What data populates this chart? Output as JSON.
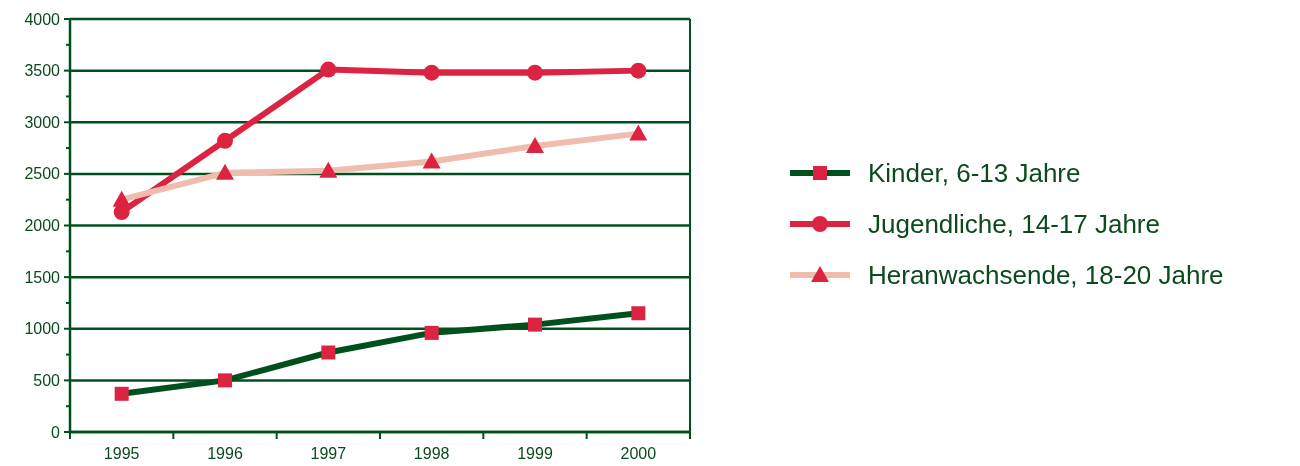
{
  "chart_data": {
    "type": "line",
    "categories": [
      "1995",
      "1996",
      "1997",
      "1998",
      "1999",
      "2000"
    ],
    "series": [
      {
        "name": "Kinder, 6-13 Jahre",
        "color": "#00501e",
        "marker": "square",
        "values": [
          370,
          500,
          770,
          960,
          1040,
          1150
        ]
      },
      {
        "name": "Jugendliche, 14-17 Jahre",
        "color": "#dc2342",
        "marker": "circle",
        "values": [
          2130,
          2820,
          3510,
          3480,
          3480,
          3500
        ]
      },
      {
        "name": "Heranwachsende, 18-20 Jahre",
        "color": "#f0bcae",
        "marker": "triangle",
        "values": [
          2250,
          2510,
          2530,
          2620,
          2770,
          2890
        ]
      }
    ],
    "ylim": [
      0,
      4000
    ],
    "yticks": [
      0,
      500,
      1000,
      1500,
      2000,
      2500,
      3000,
      3500,
      4000
    ],
    "grid": "y",
    "legend": "right",
    "line_style": "solid"
  }
}
